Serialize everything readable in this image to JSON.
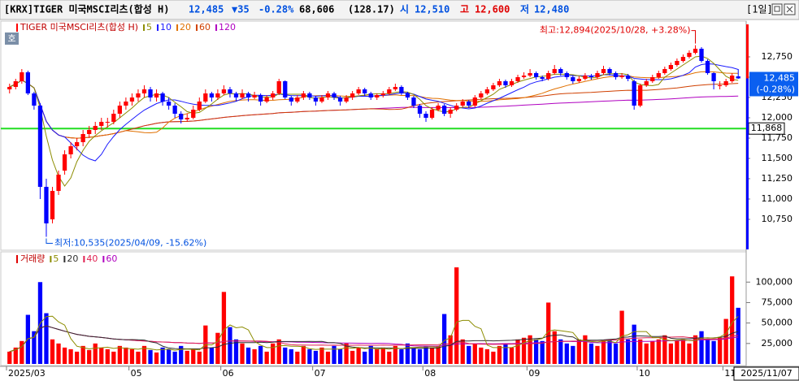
{
  "header": {
    "title": "[KRX]TIGER 미국MSCI리츠(합성 H)",
    "price": "12,485",
    "change": "▼35",
    "change_pct": "-0.28%",
    "volume": "68,606",
    "volume_ratio": "(128.17)",
    "open_label": "시",
    "open": "12,510",
    "high_label": "고",
    "high": "12,600",
    "low_label": "저",
    "low": "12,480",
    "period": "[1일]",
    "side_button": "호"
  },
  "chart_data": [
    {
      "type": "candlestick",
      "legend_title": "TIGER 미국MSCI리츠(합성 H)",
      "ma": [
        {
          "period": 5,
          "color": "#8c8c00"
        },
        {
          "period": 10,
          "color": "#1a1aff"
        },
        {
          "period": 20,
          "color": "#e07000"
        },
        {
          "period": 60,
          "color": "#d04000"
        },
        {
          "period": 120,
          "color": "#b000c0"
        }
      ],
      "colors": {
        "up": "#ff0000",
        "down": "#0000ff"
      },
      "categories": [
        "2025/03",
        null,
        null,
        null,
        null,
        null,
        null,
        null,
        null,
        null,
        null,
        null,
        null,
        null,
        null,
        null,
        null,
        null,
        null,
        null,
        "05",
        null,
        null,
        null,
        null,
        null,
        null,
        null,
        null,
        null,
        null,
        null,
        null,
        null,
        null,
        "06",
        null,
        null,
        null,
        null,
        null,
        null,
        null,
        null,
        null,
        null,
        null,
        null,
        null,
        null,
        "07",
        null,
        null,
        null,
        null,
        null,
        null,
        null,
        null,
        null,
        null,
        null,
        null,
        null,
        null,
        null,
        null,
        null,
        "08",
        null,
        null,
        null,
        null,
        null,
        null,
        null,
        null,
        null,
        null,
        null,
        null,
        null,
        null,
        null,
        null,
        "09",
        null,
        null,
        null,
        null,
        null,
        null,
        null,
        null,
        null,
        null,
        null,
        null,
        null,
        null,
        null,
        null,
        null,
        "10",
        null,
        null,
        null,
        null,
        null,
        null,
        null,
        null,
        null,
        null,
        null,
        null,
        null,
        "11",
        null,
        "2025/11/07"
      ],
      "ohlc": [
        [
          12350,
          12420,
          12300,
          12380
        ],
        [
          12380,
          12480,
          12350,
          12450
        ],
        [
          12450,
          12600,
          12420,
          12560
        ],
        [
          12560,
          12580,
          12280,
          12300
        ],
        [
          12300,
          12320,
          12100,
          12150
        ],
        [
          12150,
          12180,
          11000,
          11150
        ],
        [
          11150,
          11250,
          10535,
          10700
        ],
        [
          10750,
          11150,
          10700,
          11100
        ],
        [
          11100,
          11350,
          11050,
          11300
        ],
        [
          11350,
          11600,
          11300,
          11550
        ],
        [
          11550,
          11700,
          11500,
          11650
        ],
        [
          11650,
          11750,
          11600,
          11700
        ],
        [
          11700,
          11850,
          11650,
          11800
        ],
        [
          11800,
          11900,
          11750,
          11850
        ],
        [
          11850,
          11950,
          11800,
          11900
        ],
        [
          11900,
          12000,
          11850,
          11950
        ],
        [
          11950,
          12000,
          11880,
          11950
        ],
        [
          11950,
          12100,
          11920,
          12050
        ],
        [
          12050,
          12200,
          12000,
          12150
        ],
        [
          12150,
          12250,
          12100,
          12200
        ],
        [
          12200,
          12300,
          12150,
          12250
        ],
        [
          12250,
          12350,
          12200,
          12300
        ],
        [
          12300,
          12400,
          12250,
          12350
        ],
        [
          12350,
          12380,
          12200,
          12250
        ],
        [
          12250,
          12350,
          12200,
          12300
        ],
        [
          12300,
          12320,
          12150,
          12200
        ],
        [
          12200,
          12250,
          12100,
          12150
        ],
        [
          12150,
          12180,
          12000,
          12050
        ],
        [
          12050,
          12080,
          11930,
          11980
        ],
        [
          11980,
          12050,
          11950,
          12000
        ],
        [
          12000,
          12150,
          11980,
          12100
        ],
        [
          12100,
          12250,
          12080,
          12200
        ],
        [
          12200,
          12350,
          12180,
          12300
        ],
        [
          12300,
          12320,
          12200,
          12250
        ],
        [
          12250,
          12350,
          12220,
          12300
        ],
        [
          12300,
          12400,
          12280,
          12350
        ],
        [
          12350,
          12380,
          12250,
          12300
        ],
        [
          12300,
          12320,
          12200,
          12250
        ],
        [
          12250,
          12350,
          12230,
          12300
        ],
        [
          12300,
          12320,
          12200,
          12250
        ],
        [
          12250,
          12320,
          12230,
          12280
        ],
        [
          12280,
          12300,
          12150,
          12200
        ],
        [
          12200,
          12280,
          12180,
          12250
        ],
        [
          12250,
          12330,
          12220,
          12300
        ],
        [
          12300,
          12480,
          12280,
          12450
        ],
        [
          12450,
          12460,
          12230,
          12250
        ],
        [
          12250,
          12270,
          12150,
          12200
        ],
        [
          12200,
          12280,
          12180,
          12250
        ],
        [
          12250,
          12330,
          12220,
          12300
        ],
        [
          12300,
          12320,
          12220,
          12250
        ],
        [
          12250,
          12270,
          12150,
          12200
        ],
        [
          12200,
          12280,
          12180,
          12250
        ],
        [
          12250,
          12330,
          12220,
          12300
        ],
        [
          12300,
          12320,
          12220,
          12250
        ],
        [
          12250,
          12270,
          12150,
          12200
        ],
        [
          12200,
          12280,
          12180,
          12250
        ],
        [
          12250,
          12330,
          12220,
          12300
        ],
        [
          12300,
          12380,
          12280,
          12350
        ],
        [
          12350,
          12370,
          12270,
          12300
        ],
        [
          12300,
          12320,
          12220,
          12250
        ],
        [
          12250,
          12300,
          12220,
          12280
        ],
        [
          12280,
          12330,
          12250,
          12300
        ],
        [
          12300,
          12380,
          12280,
          12350
        ],
        [
          12350,
          12420,
          12330,
          12380
        ],
        [
          12380,
          12400,
          12280,
          12300
        ],
        [
          12300,
          12320,
          12220,
          12250
        ],
        [
          12250,
          12270,
          12120,
          12150
        ],
        [
          12150,
          12170,
          12000,
          12050
        ],
        [
          12050,
          12080,
          11950,
          12000
        ],
        [
          12000,
          12130,
          11980,
          12100
        ],
        [
          12100,
          12180,
          12080,
          12150
        ],
        [
          12150,
          12170,
          12020,
          12050
        ],
        [
          12050,
          12130,
          12000,
          12100
        ],
        [
          12100,
          12180,
          12080,
          12150
        ],
        [
          12150,
          12230,
          12130,
          12200
        ],
        [
          12200,
          12220,
          12120,
          12150
        ],
        [
          12150,
          12280,
          12130,
          12250
        ],
        [
          12250,
          12330,
          12230,
          12300
        ],
        [
          12300,
          12380,
          12280,
          12350
        ],
        [
          12350,
          12430,
          12330,
          12400
        ],
        [
          12400,
          12480,
          12380,
          12450
        ],
        [
          12450,
          12470,
          12370,
          12400
        ],
        [
          12400,
          12480,
          12380,
          12450
        ],
        [
          12450,
          12530,
          12430,
          12500
        ],
        [
          12500,
          12560,
          12480,
          12520
        ],
        [
          12520,
          12600,
          12500,
          12550
        ],
        [
          12550,
          12570,
          12470,
          12500
        ],
        [
          12500,
          12520,
          12450,
          12480
        ],
        [
          12480,
          12580,
          12460,
          12550
        ],
        [
          12550,
          12650,
          12530,
          12600
        ],
        [
          12600,
          12620,
          12520,
          12550
        ],
        [
          12550,
          12570,
          12470,
          12500
        ],
        [
          12500,
          12520,
          12420,
          12450
        ],
        [
          12450,
          12510,
          12430,
          12480
        ],
        [
          12480,
          12550,
          12460,
          12520
        ],
        [
          12520,
          12540,
          12470,
          12500
        ],
        [
          12500,
          12580,
          12480,
          12550
        ],
        [
          12550,
          12640,
          12530,
          12600
        ],
        [
          12600,
          12620,
          12520,
          12550
        ],
        [
          12550,
          12570,
          12470,
          12500
        ],
        [
          12500,
          12550,
          12480,
          12520
        ],
        [
          12520,
          12540,
          12450,
          12480
        ],
        [
          12450,
          12470,
          12100,
          12150
        ],
        [
          12150,
          12420,
          12130,
          12400
        ],
        [
          12400,
          12480,
          12380,
          12450
        ],
        [
          12450,
          12530,
          12430,
          12500
        ],
        [
          12500,
          12580,
          12480,
          12550
        ],
        [
          12550,
          12630,
          12530,
          12600
        ],
        [
          12600,
          12680,
          12580,
          12650
        ],
        [
          12650,
          12730,
          12630,
          12700
        ],
        [
          12700,
          12780,
          12680,
          12750
        ],
        [
          12750,
          12830,
          12730,
          12800
        ],
        [
          12800,
          12894,
          12780,
          12850
        ],
        [
          12850,
          12870,
          12680,
          12700
        ],
        [
          12700,
          12720,
          12530,
          12550
        ],
        [
          12550,
          12560,
          12350,
          12450
        ],
        [
          12400,
          12450,
          12350,
          12400
        ],
        [
          12400,
          12480,
          12380,
          12450
        ],
        [
          12450,
          12550,
          12430,
          12520
        ],
        [
          12510,
          12600,
          12480,
          12485
        ]
      ],
      "ylim": [
        10380,
        13150
      ],
      "yticks": [
        {
          "value": 10750,
          "label": "10,750"
        },
        {
          "value": 11000,
          "label": "11,000"
        },
        {
          "value": 11250,
          "label": "11,250"
        },
        {
          "value": 11500,
          "label": "11,500"
        },
        {
          "value": 11750,
          "label": "11,750"
        },
        {
          "value": 12000,
          "label": "12,000"
        },
        {
          "value": 12250,
          "label": "12,250"
        },
        {
          "value": 12500,
          "label": "12,500"
        },
        {
          "value": 12750,
          "label": "12,750"
        }
      ],
      "grid": false,
      "annotations": {
        "high": "최고:12,894(2025/10/28, +3.28%)",
        "low": "최저:10,535(2025/04/09, -15.62%)"
      },
      "hline": {
        "value": 11868,
        "label": "11,868",
        "color": "#22dd22"
      },
      "current": {
        "label": "12,485",
        "change": "(-0.28%)",
        "color": "#0a5ff0"
      }
    },
    {
      "type": "bar",
      "legend_title": "거래량",
      "ma": [
        {
          "period": 5,
          "color": "#8c8c00"
        },
        {
          "period": 20,
          "color": "#303030"
        },
        {
          "period": 40,
          "color": "#e02050"
        },
        {
          "period": 60,
          "color": "#b000c0"
        }
      ],
      "values": [
        15000,
        20000,
        28000,
        60000,
        40000,
        100000,
        62000,
        30000,
        25000,
        20000,
        18000,
        15000,
        22000,
        17000,
        25000,
        20000,
        18000,
        15000,
        22000,
        20000,
        18000,
        15000,
        22000,
        17000,
        14000,
        20000,
        18000,
        15000,
        22000,
        16000,
        18000,
        15000,
        47000,
        20000,
        38000,
        88000,
        45000,
        30000,
        25000,
        20000,
        18000,
        22000,
        15000,
        25000,
        30000,
        20000,
        18000,
        15000,
        22000,
        18000,
        16000,
        20000,
        15000,
        22000,
        18000,
        25000,
        16000,
        20000,
        15000,
        22000,
        18000,
        20000,
        15000,
        22000,
        18000,
        25000,
        20000,
        18000,
        22000,
        20000,
        22000,
        61000,
        35000,
        118000,
        30000,
        22000,
        25000,
        20000,
        18000,
        15000,
        22000,
        25000,
        20000,
        30000,
        32000,
        35000,
        30000,
        28000,
        75000,
        40000,
        30000,
        25000,
        22000,
        30000,
        35000,
        25000,
        22000,
        28000,
        30000,
        25000,
        65000,
        30000,
        48000,
        30000,
        25000,
        28000,
        30000,
        35000,
        25000,
        28000,
        30000,
        25000,
        35000,
        40000,
        30000,
        28000,
        32000,
        55000,
        107000,
        68606
      ],
      "ylim": [
        0,
        135000
      ],
      "yticks": [
        {
          "value": 25000,
          "label": "25,000"
        },
        {
          "value": 50000,
          "label": "50,000"
        },
        {
          "value": 75000,
          "label": "75,000"
        },
        {
          "value": 100000,
          "label": "100,000"
        }
      ]
    }
  ]
}
